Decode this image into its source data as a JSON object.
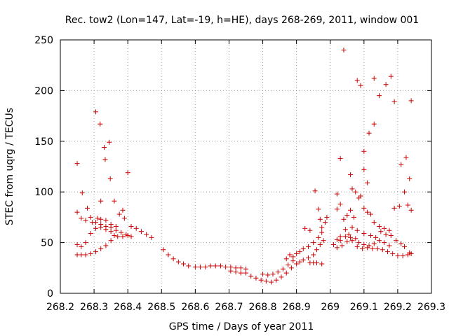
{
  "chart_data": {
    "type": "scatter",
    "title": "Rec. tow2 (Lon=147, Lat=-19, h=HE), days 268-269, 2011, window 001",
    "xlabel": "GPS time / Days of year 2011",
    "ylabel": "STEC from uqrg / TECUs",
    "xlim": [
      268.2,
      269.3
    ],
    "ylim": [
      0,
      250
    ],
    "x_ticks": [
      268.2,
      268.3,
      268.4,
      268.5,
      268.6,
      268.7,
      268.8,
      268.9,
      269,
      269.1,
      269.2,
      269.3
    ],
    "x_tick_labels": [
      "268.2",
      "268.3",
      "268.4",
      "268.5",
      "268.6",
      "268.7",
      "268.8",
      "268.9",
      "269",
      "269.1",
      "269.2",
      "269.3"
    ],
    "y_ticks": [
      0,
      50,
      100,
      150,
      200,
      250
    ],
    "y_tick_labels": [
      "0",
      "50",
      "100",
      "150",
      "200",
      "250"
    ],
    "grid": true,
    "marker": "+",
    "color": "#cc0000",
    "series": [
      {
        "points": [
          [
            268.25,
            128
          ],
          [
            268.265,
            99
          ],
          [
            268.28,
            84
          ],
          [
            268.25,
            80
          ],
          [
            268.262,
            74
          ],
          [
            268.275,
            72
          ],
          [
            268.29,
            75
          ],
          [
            268.305,
            70
          ],
          [
            268.32,
            68
          ],
          [
            268.335,
            66
          ],
          [
            268.35,
            65
          ],
          [
            268.365,
            62
          ],
          [
            268.38,
            60
          ],
          [
            268.395,
            58
          ],
          [
            268.41,
            56
          ],
          [
            268.25,
            48
          ],
          [
            268.262,
            46
          ],
          [
            268.275,
            50
          ],
          [
            268.29,
            59
          ],
          [
            268.305,
            64
          ],
          [
            268.32,
            65
          ],
          [
            268.335,
            63
          ],
          [
            268.35,
            61
          ],
          [
            268.25,
            38
          ],
          [
            268.262,
            38
          ],
          [
            268.275,
            38
          ],
          [
            268.29,
            39
          ],
          [
            268.305,
            41
          ],
          [
            268.32,
            44
          ],
          [
            268.335,
            47
          ],
          [
            268.35,
            52
          ],
          [
            268.36,
            57
          ],
          [
            268.37,
            56
          ],
          [
            268.385,
            56
          ],
          [
            268.4,
            57
          ],
          [
            268.295,
            70
          ],
          [
            268.31,
            74
          ],
          [
            268.32,
            73
          ],
          [
            268.335,
            72
          ],
          [
            268.35,
            68
          ],
          [
            268.365,
            66
          ],
          [
            268.375,
            78
          ],
          [
            268.385,
            82
          ],
          [
            268.39,
            74
          ],
          [
            268.305,
            179
          ],
          [
            268.318,
            167
          ],
          [
            268.33,
            144
          ],
          [
            268.333,
            132
          ],
          [
            268.345,
            149
          ],
          [
            268.348,
            113
          ],
          [
            268.36,
            91
          ],
          [
            268.32,
            91
          ],
          [
            268.4,
            119
          ],
          [
            268.41,
            66
          ],
          [
            268.425,
            64
          ],
          [
            268.44,
            61
          ],
          [
            268.455,
            58
          ],
          [
            268.47,
            55
          ],
          [
            268.505,
            43
          ],
          [
            268.52,
            38
          ],
          [
            268.535,
            34
          ],
          [
            268.55,
            31
          ],
          [
            268.565,
            29
          ],
          [
            268.58,
            27
          ],
          [
            268.6,
            26
          ],
          [
            268.615,
            26
          ],
          [
            268.63,
            26
          ],
          [
            268.645,
            27
          ],
          [
            268.66,
            27
          ],
          [
            268.675,
            27
          ],
          [
            268.69,
            26
          ],
          [
            268.705,
            26
          ],
          [
            268.72,
            25
          ],
          [
            268.735,
            25
          ],
          [
            268.75,
            24
          ],
          [
            268.705,
            22
          ],
          [
            268.72,
            21
          ],
          [
            268.735,
            20
          ],
          [
            268.75,
            20
          ],
          [
            268.765,
            17
          ],
          [
            268.78,
            15
          ],
          [
            268.795,
            13
          ],
          [
            268.81,
            12
          ],
          [
            268.825,
            11
          ],
          [
            268.84,
            13
          ],
          [
            268.855,
            16
          ],
          [
            268.87,
            20
          ],
          [
            268.885,
            25
          ],
          [
            268.8,
            19
          ],
          [
            268.815,
            18
          ],
          [
            268.83,
            19
          ],
          [
            268.845,
            21
          ],
          [
            268.86,
            24
          ],
          [
            268.875,
            28
          ],
          [
            268.89,
            32
          ],
          [
            268.87,
            34
          ],
          [
            268.88,
            38
          ],
          [
            268.89,
            36
          ],
          [
            268.9,
            39
          ],
          [
            268.91,
            41
          ],
          [
            268.92,
            44
          ],
          [
            268.935,
            46
          ],
          [
            268.95,
            50
          ],
          [
            268.965,
            55
          ],
          [
            268.975,
            65
          ],
          [
            268.9,
            29
          ],
          [
            268.91,
            31
          ],
          [
            268.92,
            33
          ],
          [
            268.935,
            35
          ],
          [
            268.95,
            38
          ],
          [
            268.96,
            43
          ],
          [
            268.97,
            48
          ],
          [
            268.98,
            52
          ],
          [
            268.925,
            64
          ],
          [
            268.94,
            62
          ],
          [
            268.955,
            101
          ],
          [
            268.965,
            83
          ],
          [
            268.97,
            73
          ],
          [
            268.975,
            60
          ],
          [
            268.985,
            70
          ],
          [
            268.99,
            75
          ],
          [
            268.94,
            30
          ],
          [
            268.95,
            30
          ],
          [
            268.96,
            30
          ],
          [
            268.975,
            29
          ],
          [
            269.02,
            98
          ],
          [
            269.03,
            133
          ],
          [
            269.04,
            240
          ],
          [
            269.06,
            117
          ],
          [
            269.065,
            103
          ],
          [
            269.075,
            100
          ],
          [
            269.08,
            210
          ],
          [
            269.09,
            205
          ],
          [
            269.1,
            122
          ],
          [
            269.1,
            140
          ],
          [
            269.11,
            109
          ],
          [
            269.115,
            158
          ],
          [
            269.13,
            167
          ],
          [
            269.13,
            212
          ],
          [
            269.145,
            195
          ],
          [
            269.165,
            206
          ],
          [
            269.18,
            214
          ],
          [
            269.19,
            189
          ],
          [
            269.21,
            127
          ],
          [
            269.225,
            134
          ],
          [
            269.235,
            113
          ],
          [
            269.24,
            190
          ],
          [
            269.02,
            83
          ],
          [
            269.03,
            88
          ],
          [
            269.04,
            73
          ],
          [
            269.05,
            77
          ],
          [
            269.06,
            82
          ],
          [
            269.07,
            75
          ],
          [
            269.085,
            94
          ],
          [
            269.09,
            96
          ],
          [
            269.1,
            84
          ],
          [
            269.11,
            80
          ],
          [
            269.12,
            78
          ],
          [
            269.13,
            70
          ],
          [
            269.145,
            66
          ],
          [
            269.16,
            64
          ],
          [
            269.175,
            62
          ],
          [
            269.19,
            84
          ],
          [
            269.205,
            86
          ],
          [
            269.22,
            100
          ],
          [
            269.23,
            87
          ],
          [
            269.24,
            82
          ],
          [
            269.01,
            48
          ],
          [
            269.02,
            53
          ],
          [
            269.03,
            52
          ],
          [
            269.045,
            56
          ],
          [
            269.06,
            55
          ],
          [
            269.075,
            54
          ],
          [
            269.085,
            50
          ],
          [
            269.1,
            48
          ],
          [
            269.115,
            47
          ],
          [
            269.13,
            49
          ],
          [
            269.145,
            52
          ],
          [
            269.16,
            50
          ],
          [
            269.175,
            47
          ],
          [
            269.02,
            45
          ],
          [
            269.035,
            47
          ],
          [
            269.05,
            51
          ],
          [
            269.065,
            52
          ],
          [
            269.08,
            46
          ],
          [
            269.095,
            44
          ],
          [
            269.11,
            45
          ],
          [
            269.125,
            44
          ],
          [
            269.14,
            44
          ],
          [
            269.155,
            43
          ],
          [
            269.17,
            41
          ],
          [
            269.185,
            39
          ],
          [
            269.2,
            37
          ],
          [
            269.215,
            37
          ],
          [
            269.23,
            38
          ],
          [
            269.24,
            39
          ],
          [
            269.03,
            56
          ],
          [
            269.045,
            63
          ],
          [
            269.055,
            58
          ],
          [
            269.065,
            65
          ],
          [
            269.08,
            62
          ],
          [
            269.1,
            59
          ],
          [
            269.12,
            57
          ],
          [
            269.135,
            55
          ],
          [
            269.15,
            61
          ],
          [
            269.165,
            58
          ],
          [
            269.18,
            57
          ],
          [
            269.195,
            52
          ],
          [
            269.21,
            49
          ],
          [
            269.22,
            46
          ],
          [
            269.235,
            40
          ]
        ]
      }
    ]
  }
}
